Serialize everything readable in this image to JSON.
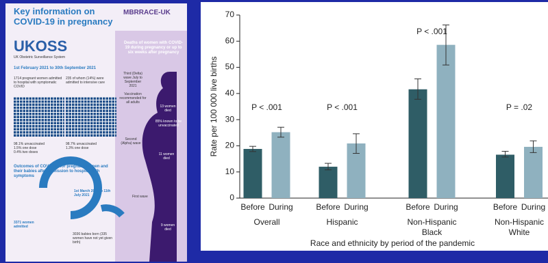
{
  "infographic": {
    "title": "Key information on COVID-19 in pregnancy",
    "logo": "MBRRACE-UK",
    "ukoss": "UKOSS",
    "ukoss_sub": "UK Obstetric Surveillance System",
    "period": "1st February 2021 to 30th September 2021",
    "admitted": "1714 pregnant women admitted to hospital with symptomatic COVID",
    "icu": "235 of whom (14%) were admitted to intensive care",
    "vacc_left": [
      "98.1% unvaccinated",
      "1.5% one dose",
      "0.4% two doses"
    ],
    "vacc_right": [
      "98.7% unvaccinated",
      "1.3% one dose"
    ],
    "outcomes": "Outcomes of COVID-19 for pregnant women and their babies after admission to hospital with symptoms",
    "women_admitted": "3371 women admitted",
    "outcome_period": "1st March 2020 to 11th July 2021",
    "babies": "3036 babies born (335 women have not yet given birth)",
    "deaths_title": "Deaths of women with COVID-19 during pregnancy or up to six weeks after pregnancy",
    "third_wave": "Third (Delta) wave July to September 2021",
    "vaccination": "Vaccination recommended for all adults",
    "died_third": "13 women died",
    "unvaccinated": "85% known to be unvaccinated",
    "second_wave": "Second (Alpha) wave",
    "died_second": "11 women died",
    "first_wave": "First wave",
    "died_first": "9 women died"
  },
  "chart_data": {
    "type": "bar",
    "categories": [
      "Overall",
      "Hispanic",
      "Non-Hispanic Black",
      "Non-Hispanic White"
    ],
    "p_labels": [
      "P < .001",
      "P < .001",
      "P < .001",
      "P = .02"
    ],
    "series": [
      {
        "name": "Before",
        "color": "#2f5d66",
        "values": [
          18.8,
          12.0,
          41.6,
          16.6
        ],
        "lower": [
          17.8,
          10.8,
          37.8,
          15.7
        ],
        "upper": [
          19.8,
          13.3,
          45.6,
          17.9
        ]
      },
      {
        "name": "During",
        "color": "#8fb1bf",
        "values": [
          25.2,
          20.9,
          58.6,
          19.6
        ],
        "lower": [
          23.3,
          17.1,
          50.9,
          17.4
        ],
        "upper": [
          27.1,
          24.6,
          66.2,
          21.9
        ]
      }
    ],
    "ylim": [
      0,
      70
    ],
    "yticks": [
      0,
      10,
      20,
      30,
      40,
      50,
      60,
      70
    ],
    "ylabel": "Rate per 100 000 live births",
    "xlabel": "Race and ethnicity by period of the pandemic"
  }
}
